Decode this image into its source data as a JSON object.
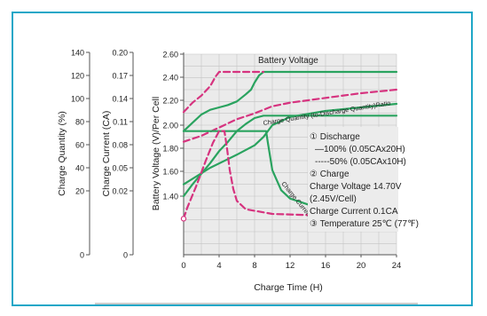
{
  "chart_data": {
    "type": "line",
    "xlabel": "Charge Time (H)",
    "x_ticks": [
      "0",
      "4",
      "8",
      "12",
      "16",
      "20",
      "24"
    ],
    "xlim": [
      0,
      24
    ],
    "grid": true,
    "axes": [
      {
        "label": "Charge Quantity (%)",
        "ticks": [
          "140",
          "120",
          "100",
          "80",
          "60",
          "40",
          "20",
          "0"
        ]
      },
      {
        "label": "Charge Current (CA)",
        "ticks": [
          "0.20",
          "0.17",
          "0.14",
          "0.11",
          "0.08",
          "0.05",
          "0.02",
          "0"
        ]
      },
      {
        "label": "Battery Voltage (V)/Per Cell",
        "ticks": [
          "2.60",
          "2.40",
          "2.20",
          "2.00",
          "1.80",
          "1.60",
          "1.40"
        ],
        "ylim": [
          1.4,
          2.6
        ]
      }
    ],
    "annotations": {
      "battery_voltage": "Battery Voltage",
      "charge_quantity": "Charge Quantity (to-Discharge Quantity)Ratio",
      "charge_current": "Charge Current"
    },
    "legend": {
      "discharge_title": "① Discharge",
      "discharge_100": "—100% (0.05CAx20H)",
      "discharge_50": "-----50% (0.05CAx10H)",
      "charge_title": "② Charge",
      "charge_voltage": "Charge Voltage 14.70V",
      "charge_voltage_cell": "(2.45V/Cell)",
      "charge_current": "Charge Current 0.1CA",
      "temperature": "③ Temperature 25℃ (77℉)"
    },
    "series": [
      {
        "style": "solid",
        "color": "#2aa35f",
        "points": [
          [
            0,
            1.95
          ],
          [
            1,
            2.02
          ],
          [
            2,
            2.09
          ],
          [
            3,
            2.13
          ],
          [
            4,
            2.15
          ],
          [
            5,
            2.17
          ],
          [
            6,
            2.2
          ],
          [
            7,
            2.26
          ],
          [
            7.6,
            2.3
          ],
          [
            8,
            2.36
          ],
          [
            8.5,
            2.42
          ],
          [
            9,
            2.45
          ],
          [
            24,
            2.45
          ]
        ]
      },
      {
        "style": "dashed",
        "color": "#d6337f",
        "points": [
          [
            0,
            2.11
          ],
          [
            1,
            2.19
          ],
          [
            2,
            2.25
          ],
          [
            3,
            2.33
          ],
          [
            3.6,
            2.41
          ],
          [
            4,
            2.45
          ],
          [
            9,
            2.45
          ]
        ]
      },
      {
        "style": "dashed",
        "color": "#d6337f",
        "points": [
          [
            0,
            1.86
          ],
          [
            2,
            1.91
          ],
          [
            4,
            1.98
          ],
          [
            6,
            2.05
          ],
          [
            8,
            2.1
          ],
          [
            10,
            2.16
          ],
          [
            12,
            2.19
          ],
          [
            16,
            2.23
          ],
          [
            20,
            2.27
          ],
          [
            24,
            2.3
          ]
        ]
      },
      {
        "style": "solid",
        "color": "#2aa35f",
        "points": [
          [
            0,
            1.5
          ],
          [
            3,
            1.64
          ],
          [
            6,
            1.75
          ],
          [
            8,
            1.83
          ],
          [
            9,
            1.9
          ],
          [
            10,
            2.0
          ],
          [
            12,
            2.07
          ],
          [
            16,
            2.12
          ],
          [
            20,
            2.15
          ],
          [
            24,
            2.18
          ]
        ]
      },
      {
        "style": "solid",
        "color": "#2aa35f",
        "points": [
          [
            0,
            1.4
          ],
          [
            1,
            1.5
          ],
          [
            2,
            1.59
          ],
          [
            3,
            1.68
          ],
          [
            4,
            1.78
          ],
          [
            5,
            1.86
          ],
          [
            6,
            1.95
          ],
          [
            7,
            2.01
          ],
          [
            8,
            2.06
          ],
          [
            9,
            2.08
          ],
          [
            24,
            2.08
          ]
        ]
      },
      {
        "style": "solid",
        "color": "#2aa35f",
        "points": [
          [
            0,
            1.95
          ],
          [
            9.3,
            1.95
          ],
          [
            9.5,
            1.85
          ],
          [
            10,
            1.62
          ],
          [
            11,
            1.45
          ],
          [
            12,
            1.38
          ],
          [
            14,
            1.33
          ],
          [
            16,
            1.31
          ],
          [
            20,
            1.3
          ],
          [
            24,
            1.3
          ]
        ]
      },
      {
        "style": "dashed",
        "color": "#d6337f",
        "points": [
          [
            0,
            1.21
          ],
          [
            0.4,
            1.3
          ],
          [
            1.5,
            1.5
          ],
          [
            2.5,
            1.7
          ],
          [
            3.3,
            1.85
          ],
          [
            4,
            1.95
          ],
          [
            4.6,
            1.95
          ],
          [
            4.9,
            1.8
          ],
          [
            5.2,
            1.62
          ],
          [
            5.6,
            1.46
          ],
          [
            6,
            1.36
          ],
          [
            7,
            1.29
          ],
          [
            10,
            1.25
          ],
          [
            14,
            1.24
          ],
          [
            20,
            1.23
          ],
          [
            24,
            1.23
          ]
        ]
      }
    ]
  }
}
